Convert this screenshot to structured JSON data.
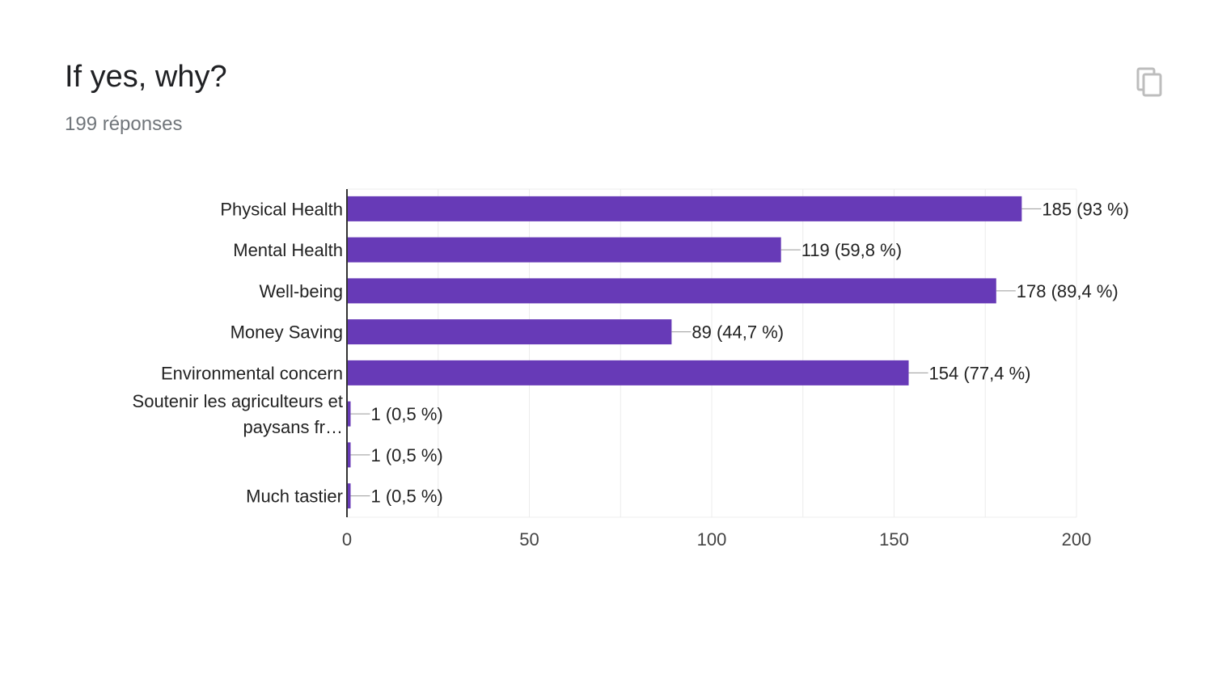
{
  "header": {
    "title": "If yes, why?",
    "responses": "199 réponses",
    "copy_icon": "copy-icon"
  },
  "colors": {
    "bar": "#673ab7",
    "grid": "#ececec",
    "axis": "#333333",
    "leader": "#999999"
  },
  "chart_data": {
    "type": "bar",
    "orientation": "horizontal",
    "categories": [
      [
        "Physical Health"
      ],
      [
        "Mental Health"
      ],
      [
        "Well-being"
      ],
      [
        "Money Saving"
      ],
      [
        "Environmental concern"
      ],
      [
        "Soutenir les agriculteurs et",
        "paysans fr…"
      ],
      [],
      [
        "Much tastier"
      ]
    ],
    "values": [
      185,
      119,
      178,
      89,
      154,
      1,
      1,
      1
    ],
    "value_labels": [
      "185 (93 %)",
      "119 (59,8 %)",
      "178 (89,4 %)",
      "89 (44,7 %)",
      "154 (77,4 %)",
      "1 (0,5 %)",
      "1 (0,5 %)",
      "1 (0,5 %)"
    ],
    "xlim": [
      0,
      200
    ],
    "xticks": [
      0,
      50,
      100,
      150,
      200
    ],
    "grid": true,
    "legend": "none"
  }
}
